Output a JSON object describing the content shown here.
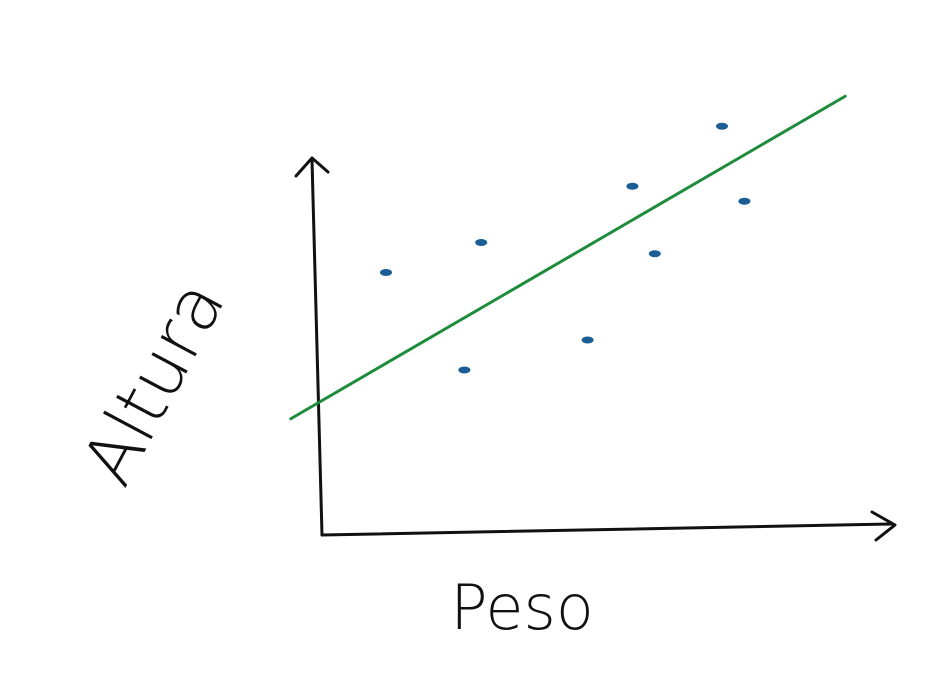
{
  "chart_data": {
    "type": "scatter",
    "x_label": "Peso",
    "y_label": "Altura",
    "xlim": [
      -10,
      100
    ],
    "ylim": [
      0,
      120
    ],
    "series": [
      {
        "type": "scatter",
        "color": "#1b5e96",
        "x": [
          10,
          27,
          24,
          46,
          54,
          58,
          70,
          74
        ],
        "values": [
          70,
          78,
          44,
          52,
          93,
          75,
          109,
          89
        ]
      },
      {
        "type": "line",
        "color": "#1e8c3c",
        "x": [
          -7,
          92
        ],
        "values": [
          31,
          117
        ]
      }
    ]
  }
}
